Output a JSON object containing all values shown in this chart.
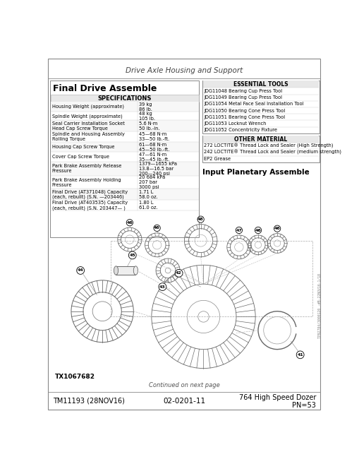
{
  "page_title": "Drive Axle Housing and Support",
  "section_title": "Final Drive Assemble",
  "specs_header": "SPECIFICATIONS",
  "specs": [
    [
      "Housing Weight (approximate)",
      "39 kg\n86 lb."
    ],
    [
      "Spindle Weight (approximate)",
      "48 kg\n105 lb."
    ],
    [
      "Seal Carrier Installation Socket\nHead Cap Screw Torque",
      "5.6 N·m\n50 lb.-in."
    ],
    [
      "Spindle and Housing Assembly\nRolling Torque",
      "45—68 N·m\n33—50 lb.-ft."
    ],
    [
      "Housing Cap Screw Torque",
      "61—68 N·m\n45—50 lb.-ft."
    ],
    [
      "Cover Cap Screw Torque",
      "47—61 N·m\n35—45 lb.-ft."
    ],
    [
      "Park Brake Assembly Release\nPressure",
      "1379—1655 kPa\n13.8—16.5 bar\n200—240 psi"
    ],
    [
      "Park Brake Assembly Holding\nPressure",
      "20 684 kPa\n207 bar\n3000 psi"
    ],
    [
      "Final Drive (AT371048) Capacity\n(each, rebuilt) (S.N. —203446)",
      "1.71 L\n58.0 oz."
    ],
    [
      "Final Drive (AT403535) Capacity\n(each, rebuilt) (S.N. 203447— )",
      "1.80 L\n61.0 oz."
    ]
  ],
  "essential_tools_header": "ESSENTIAL TOOLS",
  "essential_tools": [
    "JDG11048 Bearing Cup Press Tool",
    "JDG11049 Bearing Cup Press Tool",
    "JDG11054 Metal Face Seal Installation Tool",
    "JDG11050 Bearing Cone Press Tool",
    "JDG11051 Bearing Cone Press Tool",
    "JDG11053 Locknut Wrench",
    "JDG11052 Concentricity Fixture"
  ],
  "other_material_header": "OTHER MATERIAL",
  "other_materials": [
    "272 LOCTITE® Thread Lock and Sealer (High Strength)",
    "242 LOCTITE® Thread Lock and Sealer (medium strength)",
    "EP2 Grease"
  ],
  "input_planetary_title": "Input Planetary Assemble",
  "image_label": "TX1067682",
  "footer_left": "TM11193 (28NOV16)",
  "footer_center": "02-0201-11",
  "footer_right_line1": "764 High Speed Dozer",
  "footer_right_line2": "PN=53",
  "continued_text": "Continued on next page",
  "side_code": "TP92784/3000120 -#B-22NOV16-1/18",
  "bg_color": "#ffffff"
}
